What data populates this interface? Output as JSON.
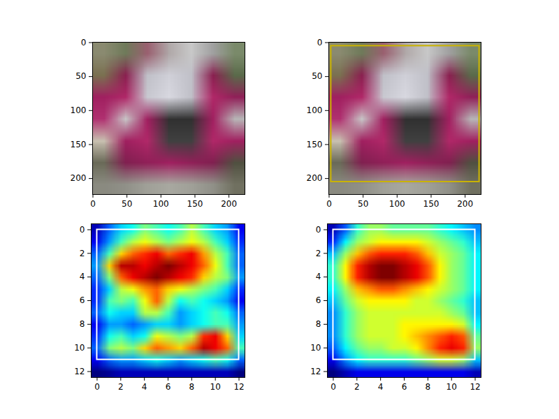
{
  "chart_data": [
    {
      "type": "image",
      "xlim": [
        -0.5,
        223.5
      ],
      "ylim": [
        223.5,
        -0.5
      ],
      "xticks": [
        0,
        50,
        100,
        150,
        200
      ],
      "yticks": [
        0,
        50,
        100,
        150,
        200
      ],
      "pixels": [
        [
          "#8a8a70",
          "#6f7a5a",
          "#9a6070",
          "#b0a8a8",
          "#c8c8c8",
          "#a0a0a0",
          "#7a8a6a"
        ],
        [
          "#7a7050",
          "#8a2050",
          "#c0c0c8",
          "#d0d0d8",
          "#c0c0c8",
          "#8a2050",
          "#5a6a4a"
        ],
        [
          "#a02060",
          "#b02868",
          "#c8c8d0",
          "#d8d8e0",
          "#c0c0c8",
          "#b02868",
          "#902058"
        ],
        [
          "#b03070",
          "#c8c8c8",
          "#a02060",
          "#303030",
          "#303030",
          "#a02060",
          "#b8b8b8"
        ],
        [
          "#c8c0b0",
          "#a02060",
          "#b02868",
          "#404040",
          "#404040",
          "#b02868",
          "#a02060"
        ],
        [
          "#6a6a58",
          "#802050",
          "#902058",
          "#a02060",
          "#902058",
          "#802050",
          "#505040"
        ],
        [
          "#8a8a80",
          "#909088",
          "#a0a098",
          "#a8a8a0",
          "#a0a098",
          "#909088",
          "#707060"
        ]
      ]
    },
    {
      "type": "image",
      "xlim": [
        -0.5,
        223.5
      ],
      "ylim": [
        223.5,
        -0.5
      ],
      "xticks": [
        0,
        50,
        100,
        150,
        200
      ],
      "yticks": [
        0,
        50,
        100,
        150,
        200
      ],
      "pixels": [
        [
          "#8a8a70",
          "#6f7a5a",
          "#9a6070",
          "#b0a8a8",
          "#c8c8c8",
          "#a0a0a0",
          "#7a8a6a"
        ],
        [
          "#7a7050",
          "#8a2050",
          "#c0c0c8",
          "#d0d0d8",
          "#c0c0c8",
          "#8a2050",
          "#5a6a4a"
        ],
        [
          "#a02060",
          "#b02868",
          "#c8c8d0",
          "#d8d8e0",
          "#c0c0c8",
          "#b02868",
          "#902058"
        ],
        [
          "#b03070",
          "#c8c8c8",
          "#a02060",
          "#303030",
          "#303030",
          "#a02060",
          "#b8b8b8"
        ],
        [
          "#c8c0b0",
          "#a02060",
          "#b02868",
          "#404040",
          "#404040",
          "#b02868",
          "#a02060"
        ],
        [
          "#6a6a58",
          "#802050",
          "#902058",
          "#a02060",
          "#902058",
          "#802050",
          "#505040"
        ],
        [
          "#8a8a80",
          "#909088",
          "#a0a098",
          "#a8a8a0",
          "#a0a098",
          "#909088",
          "#707060"
        ]
      ],
      "box": {
        "x1": 3,
        "y1": 5,
        "x2": 221,
        "y2": 205,
        "color": "#c9b300"
      }
    },
    {
      "type": "heatmap",
      "xlim": [
        -0.5,
        12.5
      ],
      "ylim": [
        12.5,
        -0.5
      ],
      "xticks": [
        0,
        2,
        4,
        6,
        8,
        10,
        12
      ],
      "yticks": [
        0,
        2,
        4,
        6,
        8,
        10,
        12
      ],
      "cells": [
        [
          0.15,
          0.3,
          0.4,
          0.45,
          0.55,
          0.5,
          0.45,
          0.5,
          0.6,
          0.5,
          0.4,
          0.35,
          0.2
        ],
        [
          0.2,
          0.35,
          0.5,
          0.6,
          0.65,
          0.6,
          0.55,
          0.6,
          0.65,
          0.6,
          0.5,
          0.4,
          0.25
        ],
        [
          0.3,
          0.5,
          0.7,
          0.8,
          0.85,
          0.9,
          0.8,
          0.85,
          0.9,
          0.75,
          0.6,
          0.5,
          0.3
        ],
        [
          0.35,
          0.7,
          0.95,
          0.95,
          0.9,
          0.95,
          1.0,
          0.95,
          0.9,
          0.8,
          0.65,
          0.5,
          0.3
        ],
        [
          0.3,
          0.55,
          0.8,
          0.9,
          0.95,
          1.0,
          0.95,
          0.9,
          0.85,
          0.7,
          0.6,
          0.55,
          0.35
        ],
        [
          0.25,
          0.4,
          0.6,
          0.65,
          0.75,
          0.8,
          0.7,
          0.65,
          0.6,
          0.55,
          0.5,
          0.4,
          0.25
        ],
        [
          0.25,
          0.5,
          0.55,
          0.5,
          0.65,
          0.8,
          0.6,
          0.45,
          0.5,
          0.45,
          0.4,
          0.35,
          0.2
        ],
        [
          0.3,
          0.45,
          0.4,
          0.4,
          0.6,
          0.6,
          0.5,
          0.35,
          0.4,
          0.45,
          0.5,
          0.45,
          0.3
        ],
        [
          0.2,
          0.35,
          0.35,
          0.3,
          0.35,
          0.4,
          0.4,
          0.35,
          0.4,
          0.45,
          0.5,
          0.5,
          0.35
        ],
        [
          0.25,
          0.45,
          0.5,
          0.4,
          0.45,
          0.65,
          0.6,
          0.55,
          0.6,
          0.85,
          0.9,
          0.7,
          0.4
        ],
        [
          0.3,
          0.55,
          0.6,
          0.55,
          0.7,
          0.8,
          0.75,
          0.7,
          0.8,
          0.95,
          0.9,
          0.8,
          0.5
        ],
        [
          0.2,
          0.3,
          0.35,
          0.35,
          0.4,
          0.45,
          0.4,
          0.35,
          0.4,
          0.45,
          0.5,
          0.45,
          0.3
        ],
        [
          0.1,
          0.12,
          0.15,
          0.15,
          0.15,
          0.15,
          0.15,
          0.15,
          0.15,
          0.15,
          0.15,
          0.15,
          0.1
        ]
      ],
      "box": {
        "x1": 0,
        "y1": 0,
        "x2": 12,
        "y2": 11,
        "color": "#ffffff"
      }
    },
    {
      "type": "heatmap",
      "xlim": [
        -0.5,
        12.5
      ],
      "ylim": [
        12.5,
        -0.5
      ],
      "xticks": [
        0,
        2,
        4,
        6,
        8,
        10,
        12
      ],
      "yticks": [
        0,
        2,
        4,
        6,
        8,
        10,
        12
      ],
      "cells": [
        [
          0.1,
          0.25,
          0.45,
          0.55,
          0.55,
          0.5,
          0.5,
          0.5,
          0.5,
          0.45,
          0.4,
          0.35,
          0.3
        ],
        [
          0.2,
          0.4,
          0.55,
          0.6,
          0.65,
          0.65,
          0.65,
          0.65,
          0.6,
          0.55,
          0.5,
          0.45,
          0.35
        ],
        [
          0.35,
          0.55,
          0.7,
          0.8,
          0.85,
          0.85,
          0.85,
          0.8,
          0.7,
          0.6,
          0.55,
          0.5,
          0.4
        ],
        [
          0.45,
          0.65,
          0.85,
          0.95,
          1.0,
          1.0,
          0.95,
          0.9,
          0.8,
          0.65,
          0.55,
          0.5,
          0.4
        ],
        [
          0.45,
          0.65,
          0.85,
          0.95,
          1.0,
          1.0,
          0.95,
          0.9,
          0.8,
          0.65,
          0.55,
          0.5,
          0.4
        ],
        [
          0.4,
          0.55,
          0.7,
          0.75,
          0.8,
          0.8,
          0.75,
          0.7,
          0.65,
          0.6,
          0.55,
          0.5,
          0.4
        ],
        [
          0.35,
          0.5,
          0.6,
          0.65,
          0.65,
          0.65,
          0.65,
          0.6,
          0.6,
          0.55,
          0.5,
          0.45,
          0.35
        ],
        [
          0.3,
          0.45,
          0.55,
          0.6,
          0.6,
          0.6,
          0.6,
          0.6,
          0.6,
          0.6,
          0.55,
          0.5,
          0.35
        ],
        [
          0.3,
          0.45,
          0.55,
          0.6,
          0.6,
          0.6,
          0.65,
          0.65,
          0.65,
          0.65,
          0.65,
          0.6,
          0.4
        ],
        [
          0.3,
          0.45,
          0.55,
          0.6,
          0.6,
          0.6,
          0.65,
          0.7,
          0.75,
          0.8,
          0.85,
          0.8,
          0.5
        ],
        [
          0.25,
          0.4,
          0.5,
          0.55,
          0.55,
          0.6,
          0.6,
          0.65,
          0.75,
          0.85,
          0.9,
          0.85,
          0.55
        ],
        [
          0.15,
          0.3,
          0.4,
          0.45,
          0.45,
          0.45,
          0.45,
          0.5,
          0.55,
          0.6,
          0.6,
          0.55,
          0.35
        ],
        [
          0.05,
          0.1,
          0.15,
          0.15,
          0.15,
          0.15,
          0.15,
          0.15,
          0.15,
          0.15,
          0.15,
          0.15,
          0.1
        ]
      ],
      "box": {
        "x1": 0,
        "y1": 0,
        "x2": 12,
        "y2": 11,
        "color": "#ffffff"
      }
    }
  ]
}
